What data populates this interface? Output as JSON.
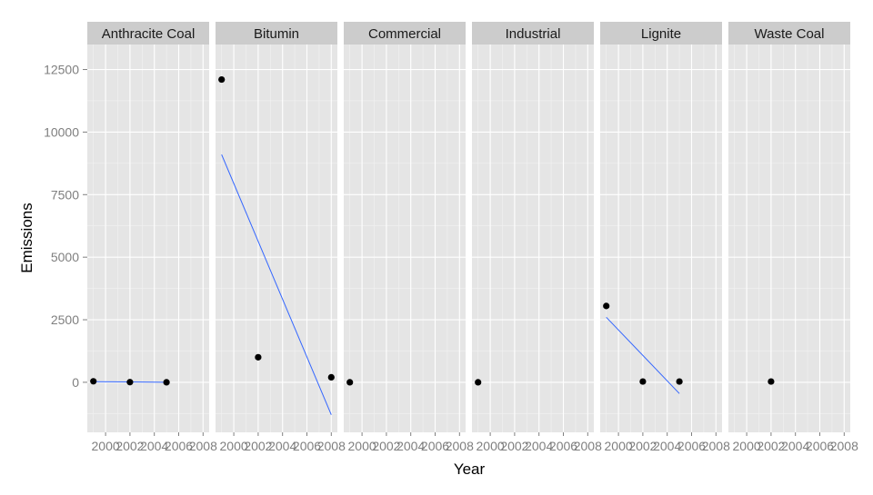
{
  "chart_data": {
    "type": "scatter",
    "xlabel": "Year",
    "ylabel": "Emissions",
    "x_ticks": [
      2000,
      2002,
      2004,
      2006,
      2008
    ],
    "x_range": [
      1998.5,
      2008.5
    ],
    "y_ticks": [
      0,
      2500,
      5000,
      7500,
      10000,
      12500
    ],
    "y_range": [
      -2000,
      13500
    ],
    "grid": true,
    "legend": "none",
    "colors": {
      "panel_background": "#e5e5e5",
      "grid": "#ffffff",
      "strip_background": "#cccccc",
      "point": "#000000",
      "trend_line": "#3366ff"
    },
    "facets": [
      {
        "label": "Anthracite Coal",
        "points": [
          {
            "x": 1999,
            "y": 40
          },
          {
            "x": 2002,
            "y": 5
          },
          {
            "x": 2005,
            "y": 0
          }
        ],
        "trend": [
          {
            "x": 1999,
            "y": 25
          },
          {
            "x": 2005,
            "y": 0
          }
        ]
      },
      {
        "label": "Bitumin",
        "points": [
          {
            "x": 1999,
            "y": 12100
          },
          {
            "x": 2002,
            "y": 1000
          },
          {
            "x": 2008,
            "y": 200
          }
        ],
        "trend": [
          {
            "x": 1999,
            "y": 9100
          },
          {
            "x": 2008,
            "y": -1300
          }
        ]
      },
      {
        "label": "Commercial",
        "points": [
          {
            "x": 1999,
            "y": 0
          }
        ],
        "trend": []
      },
      {
        "label": "Industrial",
        "points": [
          {
            "x": 1999,
            "y": 0
          }
        ],
        "trend": []
      },
      {
        "label": "Lignite",
        "points": [
          {
            "x": 1999,
            "y": 3050
          },
          {
            "x": 2002,
            "y": 30
          },
          {
            "x": 2005,
            "y": 30
          }
        ],
        "trend": [
          {
            "x": 1999,
            "y": 2600
          },
          {
            "x": 2005,
            "y": -450
          }
        ]
      },
      {
        "label": "Waste Coal",
        "points": [
          {
            "x": 2002,
            "y": 30
          }
        ],
        "trend": []
      }
    ]
  }
}
